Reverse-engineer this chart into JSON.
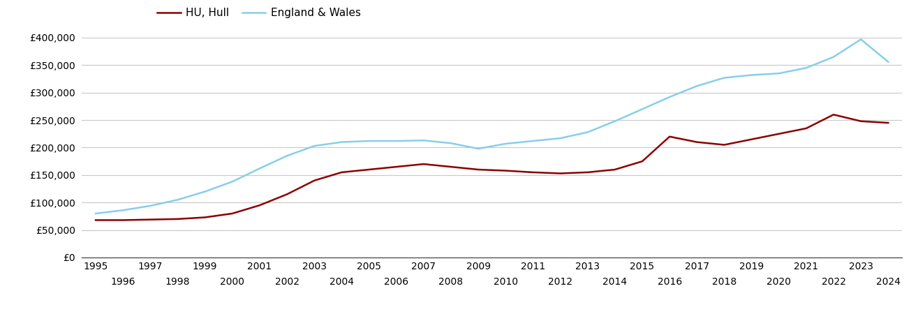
{
  "hull_years": [
    1995,
    1996,
    1997,
    1998,
    1999,
    2000,
    2001,
    2002,
    2003,
    2004,
    2005,
    2006,
    2007,
    2008,
    2009,
    2010,
    2011,
    2012,
    2013,
    2014,
    2015,
    2016,
    2017,
    2018,
    2019,
    2020,
    2021,
    2022,
    2023,
    2024
  ],
  "hull_values": [
    68000,
    68000,
    69000,
    70000,
    73000,
    80000,
    95000,
    115000,
    140000,
    155000,
    160000,
    165000,
    170000,
    165000,
    160000,
    158000,
    155000,
    153000,
    155000,
    160000,
    175000,
    220000,
    210000,
    205000,
    215000,
    225000,
    235000,
    260000,
    248000,
    245000
  ],
  "ew_years": [
    1995,
    1996,
    1997,
    1998,
    1999,
    2000,
    2001,
    2002,
    2003,
    2004,
    2005,
    2006,
    2007,
    2008,
    2009,
    2010,
    2011,
    2012,
    2013,
    2014,
    2015,
    2016,
    2017,
    2018,
    2019,
    2020,
    2021,
    2022,
    2023,
    2024
  ],
  "ew_values": [
    80000,
    86000,
    94000,
    105000,
    120000,
    138000,
    162000,
    185000,
    203000,
    210000,
    212000,
    212000,
    213000,
    208000,
    198000,
    207000,
    212000,
    217000,
    228000,
    248000,
    270000,
    292000,
    312000,
    327000,
    332000,
    335000,
    345000,
    365000,
    397000,
    356000
  ],
  "hull_color": "#8b0000",
  "ew_color": "#87ceeb",
  "hull_label": "HU, Hull",
  "ew_label": "England & Wales",
  "ylim": [
    0,
    400000
  ],
  "yticks": [
    0,
    50000,
    100000,
    150000,
    200000,
    250000,
    300000,
    350000,
    400000
  ],
  "xlim": [
    1994.5,
    2024.5
  ],
  "background_color": "#ffffff",
  "grid_color": "#c8c8c8",
  "line_width": 1.8,
  "legend_fontsize": 11,
  "tick_fontsize": 10
}
